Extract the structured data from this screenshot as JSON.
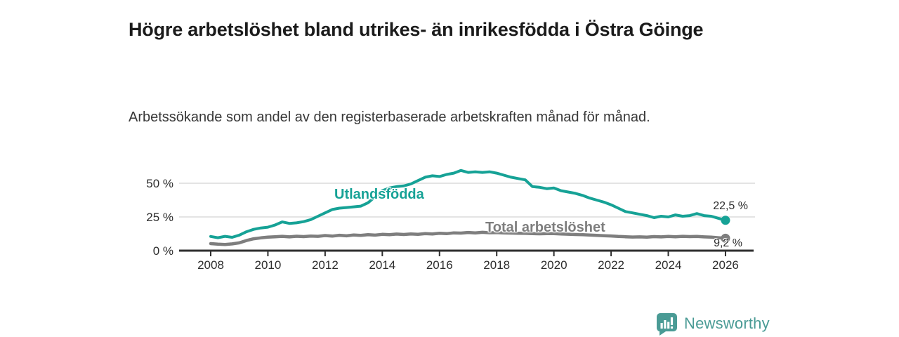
{
  "header": {
    "title": "Högre arbetslöshet bland utrikes- än inrikesfödda i Östra Göinge",
    "subtitle": "Arbetssökande som andel av den registerbaserade arbetskraften månad för månad."
  },
  "colors": {
    "foreign_born_line": "#16A296",
    "total_line": "#7E7E7E",
    "grid": "#DBDBDB",
    "axis": "#2F2F2F",
    "tick_text": "#2D2D2D",
    "title_text": "#1B1B1B",
    "logo": "#4A9B95"
  },
  "chart_data": {
    "type": "line",
    "x_start": 2008,
    "x_step": 0.25,
    "x_ticks": [
      2008,
      2010,
      2012,
      2014,
      2016,
      2018,
      2020,
      2022,
      2024,
      2026
    ],
    "y_ticks": [
      {
        "value": 0,
        "label": "0 %"
      },
      {
        "value": 25,
        "label": "25 %"
      },
      {
        "value": 50,
        "label": "50 %"
      }
    ],
    "y_range": [
      0,
      62
    ],
    "grid": "horizontal",
    "legend_position": "inline-labels",
    "series": [
      {
        "name": "Utlandsfödda",
        "color": "#16A296",
        "end_label": "22,5 %",
        "end_value": 22.5,
        "values": [
          10.5,
          9.6,
          10.6,
          9.9,
          11.5,
          14,
          15.8,
          16.8,
          17.4,
          19,
          21.3,
          20.2,
          20.6,
          21.5,
          23,
          25.5,
          28,
          30.5,
          31.5,
          32,
          32.5,
          33,
          35.5,
          40,
          44.5,
          46.5,
          47.5,
          48,
          49.5,
          52,
          54.5,
          55.5,
          55,
          56.5,
          57.5,
          59.5,
          58,
          58.5,
          58,
          58.5,
          57.5,
          56,
          54.5,
          53.5,
          52.5,
          47.5,
          47,
          46,
          46.5,
          44.5,
          43.5,
          42.5,
          41,
          39,
          37.5,
          36,
          34,
          31.5,
          29,
          28,
          27,
          26,
          24.5,
          25.5,
          25,
          26.5,
          25.5,
          26,
          27.5,
          26,
          25.5,
          24,
          22.5
        ]
      },
      {
        "name": "Total arbetslöshet",
        "color": "#7E7E7E",
        "end_label": "9,2 %",
        "end_value": 9.2,
        "values": [
          5.2,
          4.8,
          4.6,
          5,
          5.8,
          7.5,
          8.8,
          9.5,
          10,
          10.3,
          10.6,
          10.2,
          10.7,
          10.4,
          10.8,
          10.6,
          11.2,
          10.8,
          11.4,
          11,
          11.6,
          11.3,
          11.8,
          11.5,
          12.1,
          11.8,
          12.3,
          12,
          12.4,
          12.1,
          12.6,
          12.4,
          12.9,
          12.6,
          13.2,
          13,
          13.5,
          13.2,
          13.6,
          13.3,
          13.4,
          13.1,
          13,
          12.9,
          12.8,
          12.6,
          12.5,
          12.6,
          12.6,
          12.4,
          12.2,
          12,
          11.8,
          11.6,
          11.3,
          11.1,
          10.9,
          10.5,
          10.3,
          10.1,
          10.2,
          10,
          10.4,
          10.2,
          10.5,
          10.3,
          10.6,
          10.4,
          10.5,
          10.2,
          10,
          9.6,
          9.2
        ]
      }
    ]
  },
  "footer": {
    "brand": "Newsworthy"
  }
}
